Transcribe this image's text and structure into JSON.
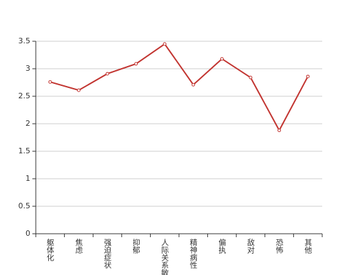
{
  "chart_data": {
    "type": "line",
    "categories": [
      "躯体化",
      "焦虑",
      "强迫症状",
      "抑郁",
      "人际关系敏感",
      "精神病性",
      "偏执",
      "敌对",
      "恐怖",
      "其他"
    ],
    "series": [
      {
        "color": "#c23531",
        "values": [
          2.76,
          2.61,
          2.91,
          3.09,
          3.45,
          2.71,
          3.18,
          2.84,
          1.88,
          2.86
        ]
      }
    ],
    "ylim": [
      0,
      3.5
    ],
    "yticks": [
      0,
      0.5,
      1,
      1.5,
      2,
      2.5,
      3,
      3.5
    ],
    "grid": true
  }
}
